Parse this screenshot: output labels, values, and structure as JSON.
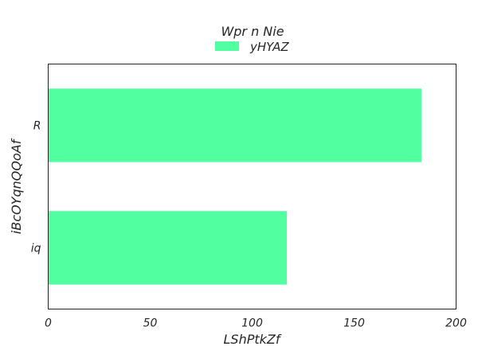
{
  "chart_data": {
    "type": "bar",
    "orientation": "horizontal",
    "title": "Wpr n Nie",
    "xlabel": "LShPtkZf",
    "ylabel": "iBcOYqnQQoAf",
    "categories": [
      "R",
      "iq"
    ],
    "series": [
      {
        "name": "yHYAZ",
        "values": [
          183,
          117
        ],
        "color": "#52ffa0"
      }
    ],
    "xlim": [
      0,
      200
    ],
    "xticks": [
      0,
      50,
      100,
      150,
      200
    ],
    "grid": false,
    "legend": "top-center"
  }
}
